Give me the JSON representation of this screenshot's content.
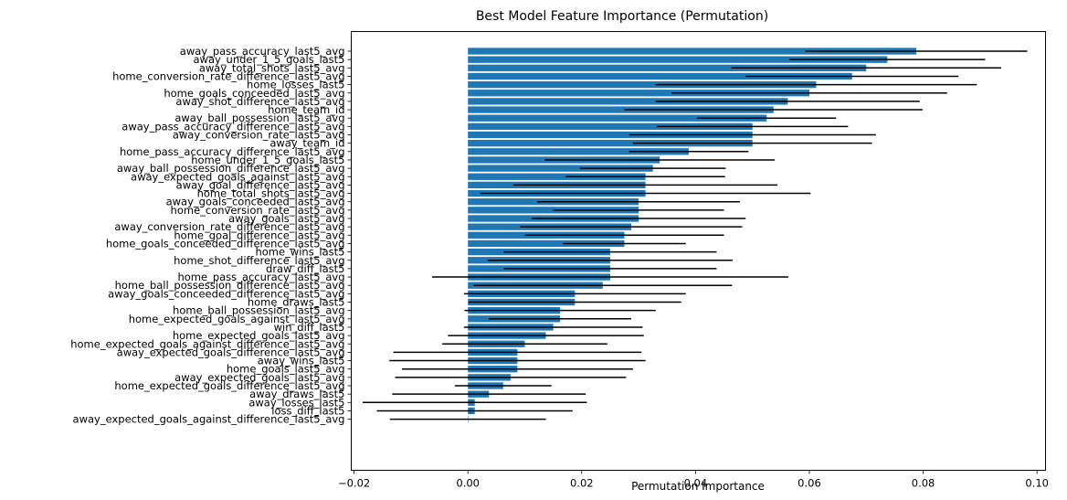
{
  "chart_data": {
    "type": "bar",
    "orientation": "horizontal",
    "title": "Best Model Feature Importance (Permutation)",
    "xlabel": "Permutation Importance",
    "ylabel": "",
    "xlim": [
      -0.0205,
      0.1015
    ],
    "xticks": [
      -0.02,
      0.0,
      0.02,
      0.04,
      0.06,
      0.08,
      0.1
    ],
    "xtick_labels": [
      "−0.02",
      "0.00",
      "0.02",
      "0.04",
      "0.06",
      "0.08",
      "0.10"
    ],
    "grid": false,
    "bar_color": "#1f77b4",
    "error_color": "#000000",
    "categories": [
      "away_pass_accuracy_last5_avg",
      "away_under_1_5_goals_last5",
      "away_total_shots_last5_avg",
      "home_conversion_rate_difference_last5_avg",
      "home_losses_last5",
      "home_goals_conceeded_last5_avg",
      "away_shot_difference_last5_avg",
      "home_team_id",
      "away_ball_possession_last5_avg",
      "away_pass_accuracy_difference_last5_avg",
      "away_conversion_rate_last5_avg",
      "away_team_id",
      "home_pass_accuracy_difference_last5_avg",
      "home_under_1_5_goals_last5",
      "away_ball_possession_difference_last5_avg",
      "away_expected_goals_against_last5_avg",
      "away_goal_difference_last5_avg",
      "home_total_shots_last5_avg",
      "away_goals_conceeded_last5_avg",
      "home_conversion_rate_last5_avg",
      "away_goals_last5_avg",
      "away_conversion_rate_difference_last5_avg",
      "home_goal_difference_last5_avg",
      "home_goals_conceeded_difference_last5_avg",
      "home_wins_last5",
      "home_shot_difference_last5_avg",
      "draw_diff_last5",
      "home_pass_accuracy_last5_avg",
      "home_ball_possession_difference_last5_avg",
      "away_goals_conceeded_difference_last5_avg",
      "home_draws_last5",
      "home_ball_possession_last5_avg",
      "home_expected_goals_against_last5_avg",
      "win_diff_last5",
      "home_expected_goals_last5_avg",
      "home_expected_goals_against_difference_last5_avg",
      "away_expected_goals_difference_last5_avg",
      "away_wins_last5",
      "home_goals_last5_avg",
      "away_expected_goals_last5_avg",
      "home_expected_goals_difference_last5_avg",
      "away_draws_last5",
      "away_losses_last5",
      "loss_diff_last5",
      "away_expected_goals_against_difference_last5_avg"
    ],
    "values": [
      0.0788,
      0.0737,
      0.07,
      0.0675,
      0.0612,
      0.06,
      0.0562,
      0.0537,
      0.0525,
      0.05,
      0.05,
      0.05,
      0.0388,
      0.0337,
      0.0325,
      0.0312,
      0.0312,
      0.0312,
      0.03,
      0.03,
      0.03,
      0.0287,
      0.0275,
      0.0275,
      0.025,
      0.025,
      0.025,
      0.025,
      0.0237,
      0.0188,
      0.0188,
      0.0162,
      0.0162,
      0.015,
      0.0137,
      0.01,
      0.0087,
      0.0087,
      0.0087,
      0.0075,
      0.0062,
      0.0037,
      0.0012,
      0.0012,
      0.0
    ],
    "errors": [
      0.0195,
      0.0172,
      0.0237,
      0.0187,
      0.0282,
      0.0242,
      0.0232,
      0.0262,
      0.0122,
      0.0168,
      0.0217,
      0.021,
      0.0105,
      0.0202,
      0.0128,
      0.014,
      0.0232,
      0.029,
      0.0178,
      0.015,
      0.0188,
      0.0195,
      0.0175,
      0.0108,
      0.0187,
      0.0215,
      0.0187,
      0.0313,
      0.0227,
      0.0195,
      0.0187,
      0.0168,
      0.0125,
      0.0157,
      0.0172,
      0.0145,
      0.0218,
      0.0225,
      0.0203,
      0.0203,
      0.0085,
      0.017,
      0.0197,
      0.0172,
      0.0137
    ]
  }
}
